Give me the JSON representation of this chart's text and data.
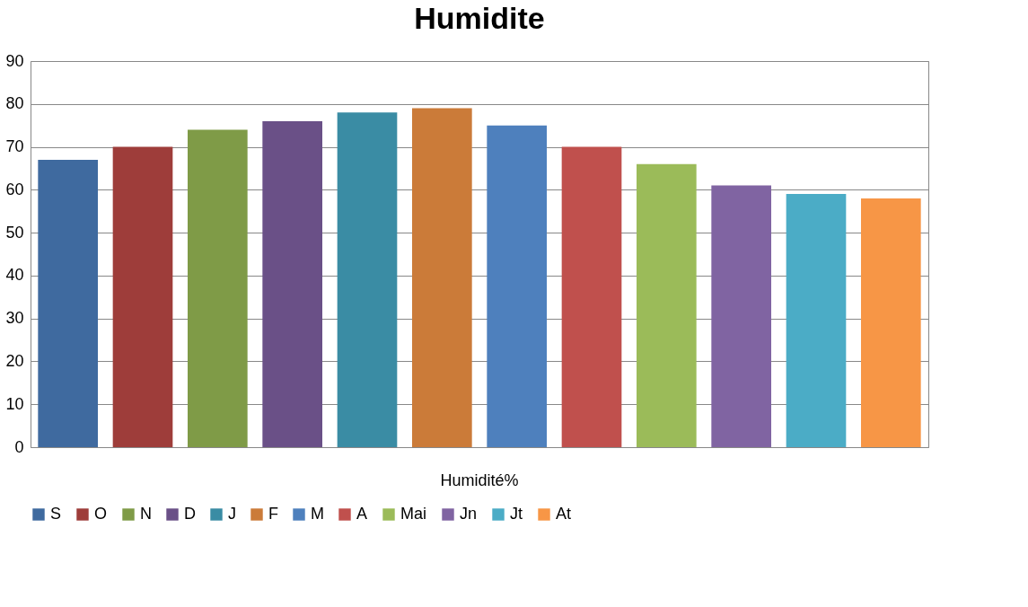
{
  "chart_data": {
    "type": "bar",
    "title": "Humidite",
    "categories": [
      "Humidité%"
    ],
    "series": [
      {
        "name": "S",
        "color": "#3f6a9f",
        "values": [
          67
        ]
      },
      {
        "name": "O",
        "color": "#9e3d3a",
        "values": [
          70
        ]
      },
      {
        "name": "N",
        "color": "#7f9b47",
        "values": [
          74
        ]
      },
      {
        "name": "D",
        "color": "#6a5087",
        "values": [
          76
        ]
      },
      {
        "name": "J",
        "color": "#3a8ca4",
        "values": [
          78
        ]
      },
      {
        "name": "F",
        "color": "#cb7b39",
        "values": [
          79
        ]
      },
      {
        "name": "M",
        "color": "#4e80bd",
        "values": [
          75
        ]
      },
      {
        "name": "A",
        "color": "#c0504d",
        "values": [
          70
        ]
      },
      {
        "name": "Mai",
        "color": "#9bbb59",
        "values": [
          66
        ]
      },
      {
        "name": "Jn",
        "color": "#8064a2",
        "values": [
          61
        ]
      },
      {
        "name": "Jt",
        "color": "#4bacc6",
        "values": [
          59
        ]
      },
      {
        "name": "At",
        "color": "#f79646",
        "values": [
          58
        ]
      }
    ],
    "ylim": [
      0,
      90
    ],
    "yticks": [
      0,
      10,
      20,
      30,
      40,
      50,
      60,
      70,
      80,
      90
    ],
    "grid": "y",
    "legend": "bottom"
  }
}
